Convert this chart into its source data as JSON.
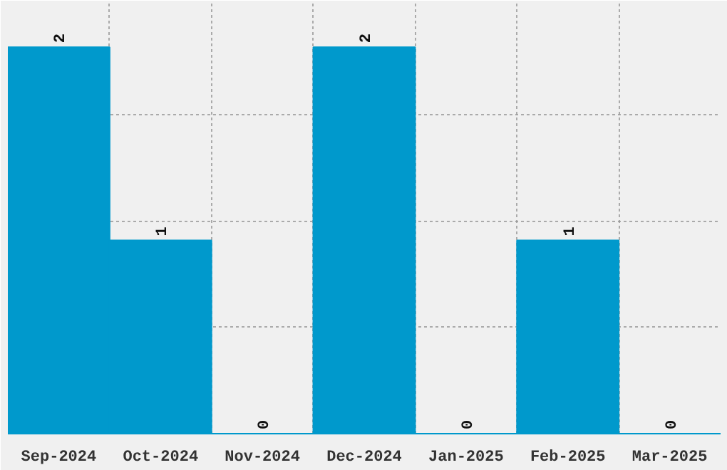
{
  "chart_data": {
    "type": "bar",
    "categories": [
      "Sep-2024",
      "Oct-2024",
      "Nov-2024",
      "Dec-2024",
      "Jan-2025",
      "Feb-2025",
      "Mar-2025"
    ],
    "values": [
      2,
      1,
      0,
      2,
      0,
      1,
      0
    ],
    "color": "#0099cc",
    "data_labels": true,
    "ylim": [
      0,
      2.24
    ],
    "yticks": [
      {
        "value": 0.55,
        "label": null
      },
      {
        "value": 1.1,
        "label": null
      },
      {
        "value": 1.65,
        "label": null
      }
    ],
    "grid": true,
    "tick_labels": "x"
  }
}
